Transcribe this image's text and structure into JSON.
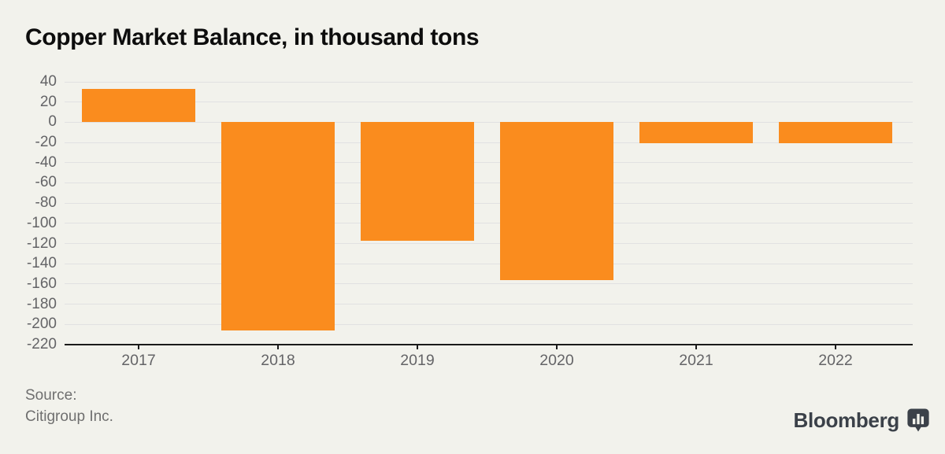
{
  "title": "Copper Market Balance, in thousand tons",
  "source": {
    "line1": "Source:",
    "line2": "Citigroup Inc."
  },
  "branding": {
    "name": "Bloomberg",
    "icon": "bloomberg-chart-bubble-icon"
  },
  "colors": {
    "background": "#f2f2ec",
    "bar": "#fa8c1e",
    "gridline": "#e1e1e2",
    "axis": "#1a1a1a",
    "tick_label": "#646467",
    "title": "#0d0d0d",
    "logo": "#3b4149"
  },
  "chart_data": {
    "type": "bar",
    "title": "Copper Market Balance, in thousand tons",
    "categories": [
      "2017",
      "2018",
      "2019",
      "2020",
      "2021",
      "2022"
    ],
    "values": [
      33,
      -206,
      -117,
      -156,
      -21,
      -21
    ],
    "xlabel": "",
    "ylabel": "thousand tons",
    "ylim": [
      -220,
      40
    ],
    "yticks": [
      40,
      20,
      0,
      -20,
      -40,
      -60,
      -80,
      -100,
      -120,
      -140,
      -160,
      -180,
      -200,
      -220
    ],
    "bar_color": "#fa8c1e",
    "grid": true,
    "legend": false
  }
}
